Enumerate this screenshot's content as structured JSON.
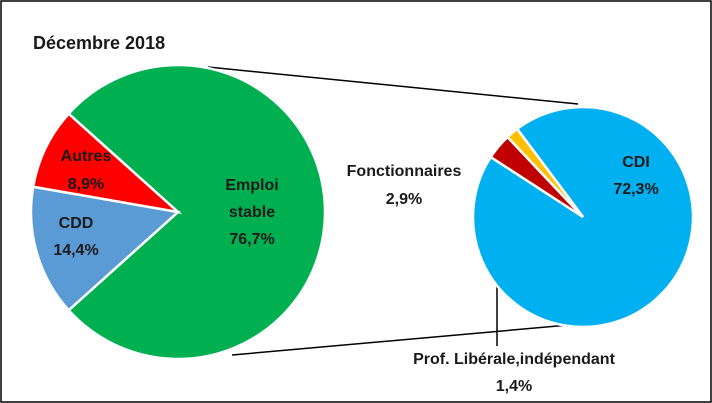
{
  "chart_data": {
    "type": "pie-of-pie",
    "title": "Décembre 2018",
    "categories": [
      "Emploi stable",
      "CDD",
      "Autres"
    ],
    "values": [
      76.7,
      14.4,
      8.9
    ],
    "value_labels": [
      "76,7%",
      "14,4%",
      "8,9%"
    ],
    "colors": [
      "#00b050",
      "#5b9bd5",
      "#ff0000"
    ],
    "secondary": {
      "categories": [
        "CDI",
        "Fonctionnaires",
        "Prof. Libérale,indépendant"
      ],
      "values": [
        72.3,
        2.9,
        1.4
      ],
      "value_labels": [
        "72,3%",
        "2,9%",
        "1,4%"
      ],
      "colors": [
        "#00b0f0",
        "#c00000",
        "#ffc000"
      ]
    }
  }
}
